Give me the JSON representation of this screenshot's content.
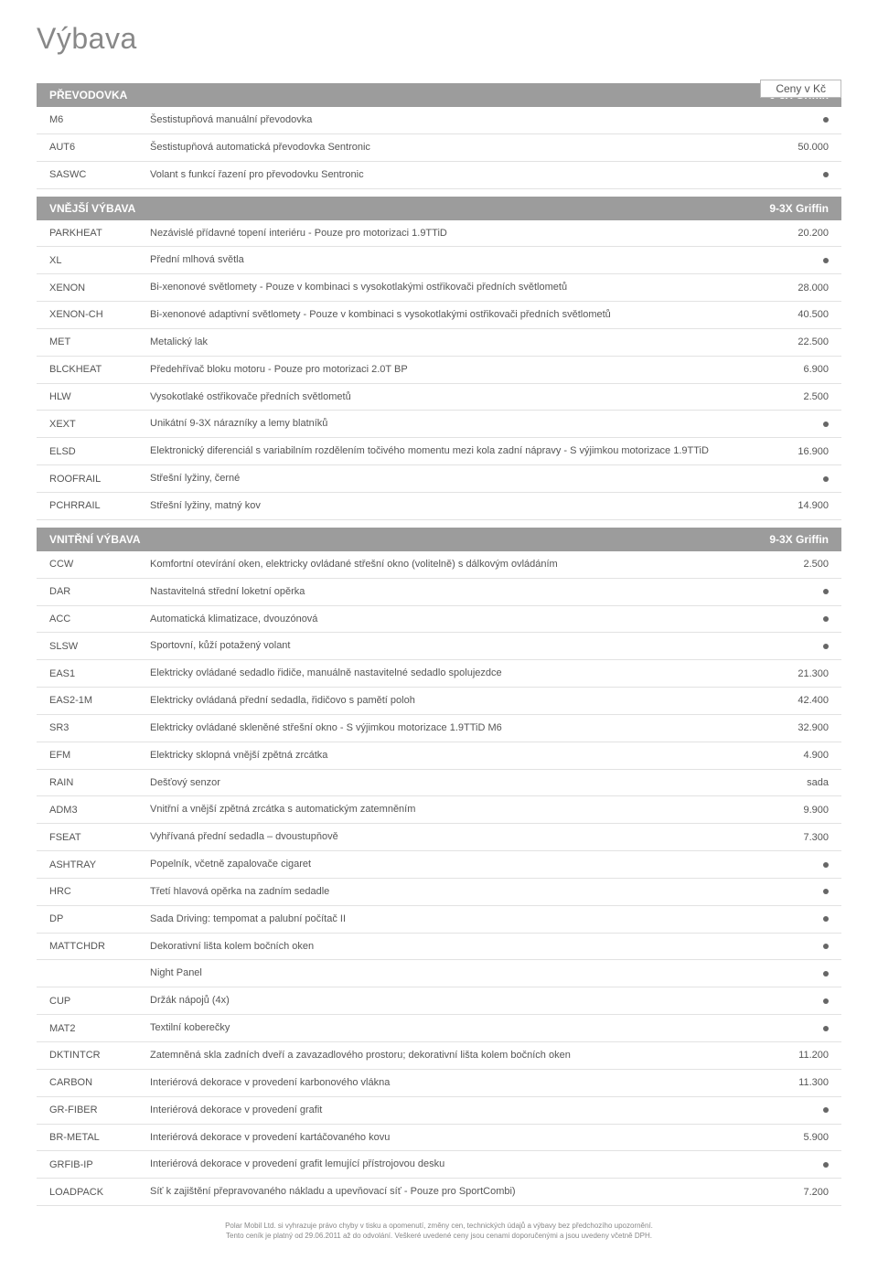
{
  "page_title": "Výbava",
  "currency_label": "Ceny v Kč",
  "column_header": "9-3X Griffin",
  "sections": [
    {
      "title": "PŘEVODOVKA",
      "rows": [
        {
          "code": "M6",
          "desc": "Šestistupňová manuální převodovka",
          "val": "●"
        },
        {
          "code": "AUT6",
          "desc": "Šestistupňová automatická převodovka Sentronic",
          "val": "50.000"
        },
        {
          "code": "SASWC",
          "desc": "Volant s funkcí řazení pro převodovku Sentronic",
          "val": "●"
        }
      ]
    },
    {
      "title": "VNĚJŠÍ VÝBAVA",
      "rows": [
        {
          "code": "PARKHEAT",
          "desc": "Nezávislé přídavné topení interiéru - Pouze pro motorizaci 1.9TTiD",
          "val": "20.200"
        },
        {
          "code": "XL",
          "desc": "Přední mlhová světla",
          "val": "●"
        },
        {
          "code": "XENON",
          "desc": "Bi-xenonové světlomety - Pouze v kombinaci s vysokotlakými ostřikovači předních světlometů",
          "val": "28.000"
        },
        {
          "code": "XENON-CH",
          "desc": "Bi-xenonové adaptivní světlomety - Pouze v kombinaci s vysokotlakými ostřikovači předních světlometů",
          "val": "40.500"
        },
        {
          "code": "MET",
          "desc": "Metalický lak",
          "val": "22.500"
        },
        {
          "code": "BLCKHEAT",
          "desc": "Předehřívač bloku motoru - Pouze pro motorizaci 2.0T BP",
          "val": "6.900"
        },
        {
          "code": "HLW",
          "desc": "Vysokotlaké ostřikovače předních světlometů",
          "val": "2.500"
        },
        {
          "code": "XEXT",
          "desc": "Unikátní 9-3X nárazníky a lemy blatníků",
          "val": "●"
        },
        {
          "code": "ELSD",
          "desc": "Elektronický diferenciál s variabilním rozdělením točivého momentu mezi kola zadní nápravy - S výjimkou motorizace 1.9TTiD",
          "val": "16.900"
        },
        {
          "code": "ROOFRAIL",
          "desc": "Střešní lyžiny, černé",
          "val": "●"
        },
        {
          "code": "PCHRRAIL",
          "desc": "Střešní lyžiny, matný kov",
          "val": "14.900"
        }
      ]
    },
    {
      "title": "VNITŘNÍ VÝBAVA",
      "rows": [
        {
          "code": "CCW",
          "desc": "Komfortní otevírání oken, elektricky ovládané střešní okno (volitelně) s dálkovým ovládáním",
          "val": "2.500"
        },
        {
          "code": "DAR",
          "desc": "Nastavitelná střední loketní opěrka",
          "val": "●"
        },
        {
          "code": "ACC",
          "desc": "Automatická klimatizace, dvouzónová",
          "val": "●"
        },
        {
          "code": "SLSW",
          "desc": "Sportovní, kůží potažený volant",
          "val": "●"
        },
        {
          "code": "EAS1",
          "desc": "Elektricky ovládané sedadlo řidiče, manuálně nastavitelné sedadlo spolujezdce",
          "val": "21.300"
        },
        {
          "code": "EAS2-1M",
          "desc": "Elektricky ovládaná přední sedadla, řidičovo s pamětí poloh",
          "val": "42.400"
        },
        {
          "code": "SR3",
          "desc": "Elektricky ovládané skleněné střešní okno - S výjimkou motorizace 1.9TTiD M6",
          "val": "32.900"
        },
        {
          "code": "EFM",
          "desc": "Elektricky sklopná vnější zpětná zrcátka",
          "val": "4.900"
        },
        {
          "code": "RAIN",
          "desc": "Dešťový senzor",
          "val": "sada"
        },
        {
          "code": "ADM3",
          "desc": "Vnitřní a vnější zpětná zrcátka s automatickým zatemněním",
          "val": "9.900"
        },
        {
          "code": "FSEAT",
          "desc": "Vyhřívaná přední sedadla – dvoustupňově",
          "val": "7.300"
        },
        {
          "code": "ASHTRAY",
          "desc": "Popelník, včetně zapalovače cigaret",
          "val": "●"
        },
        {
          "code": "HRC",
          "desc": "Třetí hlavová opěrka na zadním sedadle",
          "val": "●"
        },
        {
          "code": "DP",
          "desc": "Sada Driving: tempomat a palubní počítač II",
          "val": "●"
        },
        {
          "code": "MATTCHDR",
          "desc": "Dekorativní lišta kolem bočních oken",
          "val": "●"
        },
        {
          "code": "",
          "desc": "Night Panel",
          "val": "●"
        },
        {
          "code": "CUP",
          "desc": "Držák nápojů (4x)",
          "val": "●"
        },
        {
          "code": "MAT2",
          "desc": "Textilní koberečky",
          "val": "●"
        },
        {
          "code": "DKTINTCR",
          "desc": "Zatemněná skla zadních dveří a zavazadlového prostoru; dekorativní lišta kolem bočních oken",
          "val": "11.200"
        },
        {
          "code": "CARBON",
          "desc": "Interiérová dekorace v provedení karbonového vlákna",
          "val": "11.300"
        },
        {
          "code": "GR-FIBER",
          "desc": "Interiérová dekorace v provedení grafit",
          "val": "●"
        },
        {
          "code": "BR-METAL",
          "desc": "Interiérová dekorace v provedení kartáčovaného kovu",
          "val": "5.900"
        },
        {
          "code": "GRFIB-IP",
          "desc": "Interiérová dekorace v provedení grafit lemující přístrojovou desku",
          "val": "●"
        },
        {
          "code": "LOADPACK",
          "desc": "Síť k zajištění přepravovaného nákladu a upevňovací síť - Pouze pro SportCombi)",
          "val": "7.200"
        }
      ]
    }
  ],
  "footer": {
    "line1": "Polar Mobil Ltd. si vyhrazuje právo chyby v tisku a opomenutí, změny cen, technických údajů a výbavy bez předchozího upozornění.",
    "line2": "Tento ceník je platný od 29.06.2011 až do odvolání. Veškeré uvedené ceny jsou cenami doporučenými a jsou uvedeny včetně DPH."
  },
  "colors": {
    "header_bg": "#9c9c9c",
    "text": "#555555",
    "title": "#888888",
    "border": "#e2e2e2"
  }
}
